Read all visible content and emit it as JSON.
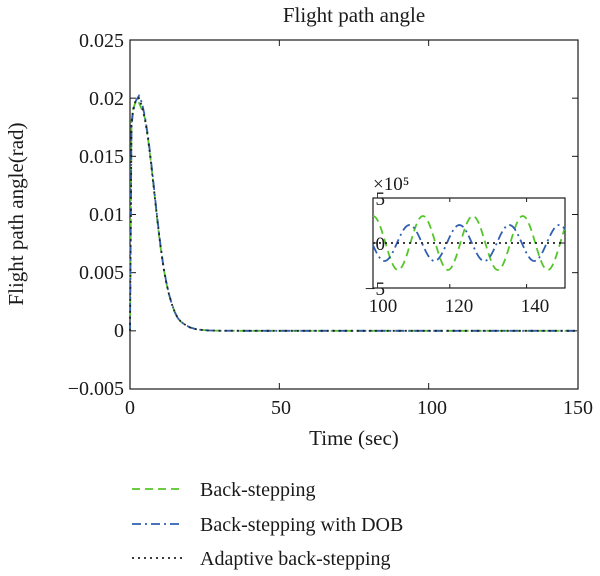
{
  "chart_data": [
    {
      "type": "line",
      "title": "Flight path angle",
      "xlabel": "Time (sec)",
      "ylabel": "Flight path angle(rad)",
      "xlim": [
        0,
        150
      ],
      "ylim": [
        -0.005,
        0.025
      ],
      "x_ticks": [
        "0",
        "50",
        "100",
        "150"
      ],
      "y_ticks": [
        "−0.005",
        "0",
        "0.005",
        "0.01",
        "0.015",
        "0.02",
        "0.025"
      ],
      "grid": false,
      "legend_position": "below",
      "series": [
        {
          "name": "Back-stepping",
          "color": "#55c62a",
          "style": "dashed",
          "x": [
            0,
            0.5,
            1,
            2,
            3,
            4,
            5,
            6,
            7,
            8,
            9,
            10,
            11,
            12,
            13,
            14,
            15,
            16,
            17,
            18,
            20,
            22,
            24,
            26,
            28,
            30,
            40,
            60,
            80,
            100,
            120,
            150
          ],
          "y": [
            0,
            0.018,
            0.019,
            0.0198,
            0.0196,
            0.019,
            0.0183,
            0.0166,
            0.0145,
            0.0122,
            0.0098,
            0.0076,
            0.0058,
            0.0043,
            0.0032,
            0.0023,
            0.0016,
            0.0011,
            0.0008,
            0.0006,
            0.0003,
            0.00015,
            8e-05,
            4e-05,
            2e-05,
            1e-05,
            0,
            0,
            0,
            0,
            0,
            0
          ]
        },
        {
          "name": "Back-stepping with DOB",
          "color": "#2f5fb3",
          "style": "dash-dot",
          "x": [
            0,
            0.5,
            1,
            2,
            3,
            4,
            5,
            6,
            7,
            8,
            9,
            10,
            11,
            12,
            13,
            14,
            15,
            16,
            17,
            18,
            20,
            22,
            24,
            26,
            28,
            30,
            40,
            60,
            80,
            100,
            120,
            150
          ],
          "y": [
            0,
            0.0175,
            0.0188,
            0.0198,
            0.0202,
            0.0196,
            0.0184,
            0.0168,
            0.0147,
            0.0124,
            0.01,
            0.0078,
            0.0059,
            0.0044,
            0.0032,
            0.0023,
            0.0016,
            0.0011,
            0.0008,
            0.0006,
            0.0003,
            0.00015,
            8e-05,
            4e-05,
            2e-05,
            1e-05,
            0,
            0,
            0,
            0,
            0,
            0
          ]
        },
        {
          "name": "Adaptive back-stepping",
          "color": "#222222",
          "style": "dotted",
          "x": [
            0,
            0.5,
            1,
            2,
            3,
            4,
            5,
            6,
            7,
            8,
            9,
            10,
            11,
            12,
            13,
            14,
            15,
            16,
            17,
            18,
            20,
            22,
            24,
            26,
            28,
            30,
            40,
            60,
            80,
            100,
            120,
            150
          ],
          "y": [
            0,
            0.0178,
            0.019,
            0.0199,
            0.02,
            0.0193,
            0.0182,
            0.0166,
            0.0145,
            0.0122,
            0.0099,
            0.0077,
            0.0058,
            0.0043,
            0.0032,
            0.0023,
            0.0016,
            0.0011,
            0.0008,
            0.0006,
            0.0003,
            0.00015,
            8e-05,
            4e-05,
            2e-05,
            1e-05,
            0,
            0,
            0,
            0,
            0,
            0
          ]
        }
      ]
    },
    {
      "type": "line",
      "title": "",
      "scale_label": "×10⁵",
      "xlim": [
        100,
        150
      ],
      "ylim": [
        -5,
        5
      ],
      "x_ticks": [
        "100",
        "120",
        "140"
      ],
      "y_ticks": [
        "5",
        "0",
        "−5"
      ],
      "series": [
        {
          "ref": "Back-stepping",
          "color": "#55c62a",
          "style": "dashed",
          "amplitude": 3,
          "period": 13,
          "phase": 0
        },
        {
          "ref": "Back-stepping with DOB",
          "color": "#2f5fb3",
          "style": "dash-dot",
          "amplitude": 2,
          "period": 13,
          "phase": 3.5
        },
        {
          "ref": "Adaptive back-stepping",
          "color": "#222222",
          "style": "dotted",
          "amplitude": 0,
          "period": 13,
          "phase": 0
        }
      ]
    }
  ]
}
